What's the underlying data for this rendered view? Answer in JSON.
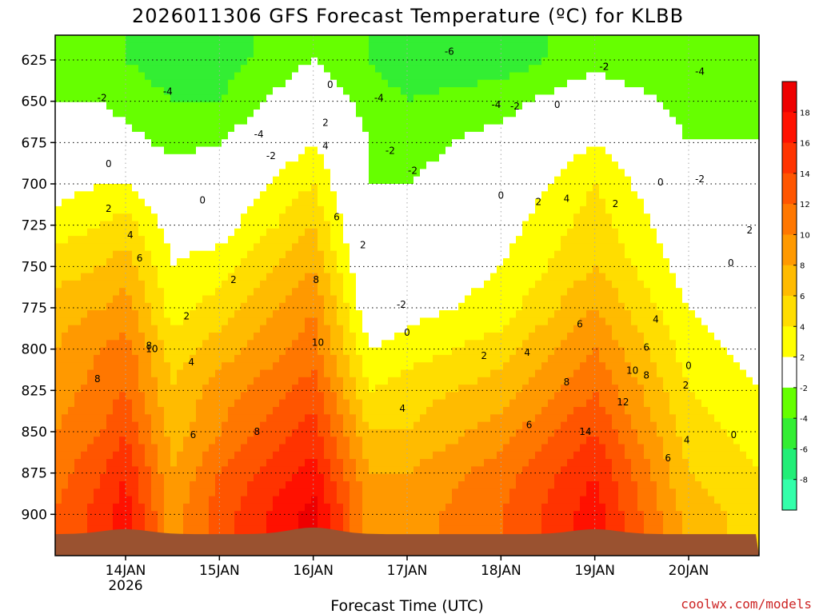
{
  "chart_data": {
    "type": "heatmap",
    "title": "2026011306 GFS Forecast Temperature (ºC) for KLBB",
    "xlabel": "Forecast Time (UTC)",
    "ylabel": "",
    "credit": "coolwx.com/models",
    "y_axis": {
      "range": [
        610,
        925
      ],
      "inverted": true,
      "ticks": [
        "625",
        "650",
        "675",
        "700",
        "725",
        "750",
        "775",
        "800",
        "825",
        "850",
        "875",
        "900"
      ]
    },
    "x_axis": {
      "range_days": [
        -0.75,
        6.75
      ],
      "ticks": [
        {
          "label": "14JAN",
          "day": 0
        },
        {
          "label": "15JAN",
          "day": 1
        },
        {
          "label": "16JAN",
          "day": 2
        },
        {
          "label": "17JAN",
          "day": 3
        },
        {
          "label": "18JAN",
          "day": 4
        },
        {
          "label": "19JAN",
          "day": 5
        },
        {
          "label": "20JAN",
          "day": 6
        }
      ],
      "year_label": "2026"
    },
    "grid": true,
    "colorbar": {
      "levels": [
        -10,
        -8,
        -6,
        -4,
        -2,
        2,
        4,
        6,
        8,
        10,
        12,
        14,
        16,
        18,
        20
      ],
      "tick_labels": [
        "-8",
        "-6",
        "-4",
        "-2",
        "2",
        "4",
        "6",
        "8",
        "10",
        "12",
        "14",
        "16",
        "18"
      ],
      "colors": [
        "#33ffaa",
        "#22ee77",
        "#33ee33",
        "#66ff00",
        "#ffffff",
        "#ffff00",
        "#ffdd00",
        "#ffbb00",
        "#ff9900",
        "#ff7700",
        "#ff5500",
        "#ff3300",
        "#ff1100",
        "#ee0000"
      ]
    },
    "surface_pressure_hpa": 910,
    "temperature_column": [
      {
        "day": -0.75,
        "temp_by_level": [
          -2,
          -2,
          0,
          1,
          3,
          5,
          7,
          8,
          9,
          10,
          11,
          12
        ]
      },
      {
        "day": -0.25,
        "temp_by_level": [
          -3,
          -2,
          0,
          2,
          4,
          6,
          8,
          10,
          11,
          12,
          14,
          15
        ]
      },
      {
        "day": 0.0,
        "temp_by_level": [
          -4,
          -3,
          -1,
          2,
          5,
          7,
          9,
          11,
          12,
          14,
          16,
          17
        ]
      },
      {
        "day": 0.5,
        "temp_by_level": [
          -5,
          -4,
          -3,
          0,
          1,
          2,
          3,
          5,
          6,
          7,
          8,
          9
        ]
      },
      {
        "day": 1.0,
        "temp_by_level": [
          -5,
          -4,
          -2,
          0,
          1,
          3,
          5,
          7,
          9,
          10,
          12,
          13
        ]
      },
      {
        "day": 2.0,
        "temp_by_level": [
          -2,
          0,
          2,
          4,
          6,
          8,
          10,
          11,
          13,
          15,
          17,
          19
        ]
      },
      {
        "day": 2.6,
        "temp_by_level": [
          -4,
          -3,
          -2,
          -2,
          -2,
          -1,
          0,
          2,
          4,
          6,
          8,
          9
        ]
      },
      {
        "day": 3.0,
        "temp_by_level": [
          -5,
          -4,
          -3,
          -2,
          -1,
          0,
          1,
          3,
          5,
          6,
          8,
          9
        ]
      },
      {
        "day": 4.0,
        "temp_by_level": [
          -5,
          -3,
          -1,
          0,
          1,
          2,
          3,
          5,
          7,
          9,
          11,
          12
        ]
      },
      {
        "day": 5.0,
        "temp_by_level": [
          -3,
          0,
          2,
          4,
          5,
          6,
          8,
          10,
          12,
          14,
          16,
          17
        ]
      },
      {
        "day": 6.0,
        "temp_by_level": [
          -4,
          -3,
          -2,
          -1,
          0,
          1,
          2,
          3,
          4,
          5,
          6,
          7
        ]
      },
      {
        "day": 6.75,
        "temp_by_level": [
          -3,
          -3,
          -2,
          -1,
          -1,
          0,
          0,
          1,
          2,
          3,
          4,
          5
        ]
      }
    ],
    "contour_labels": [
      {
        "text": "-6",
        "day": 3.45,
        "p": 620
      },
      {
        "text": "-4",
        "day": 0.45,
        "p": 644
      },
      {
        "text": "-4",
        "day": 1.42,
        "p": 670
      },
      {
        "text": "-4",
        "day": 2.7,
        "p": 648
      },
      {
        "text": "-4",
        "day": 6.12,
        "p": 632
      },
      {
        "text": "-2",
        "day": -0.25,
        "p": 648
      },
      {
        "text": "-2",
        "day": 1.55,
        "p": 683
      },
      {
        "text": "-2",
        "day": 2.82,
        "p": 680
      },
      {
        "text": "-2",
        "day": 3.06,
        "p": 692
      },
      {
        "text": "-2",
        "day": 4.15,
        "p": 653
      },
      {
        "text": "-2",
        "day": 5.1,
        "p": 629
      },
      {
        "text": "-2",
        "day": 6.12,
        "p": 697
      },
      {
        "text": "-2",
        "day": 2.94,
        "p": 773
      },
      {
        "text": "-4",
        "day": 3.95,
        "p": 652
      },
      {
        "text": "-2",
        "day": 5.1,
        "p": 629
      },
      {
        "text": "0",
        "day": -0.18,
        "p": 688
      },
      {
        "text": "0",
        "day": 0.82,
        "p": 710
      },
      {
        "text": "0",
        "day": 2.18,
        "p": 640
      },
      {
        "text": "0",
        "day": 4.6,
        "p": 652
      },
      {
        "text": "0",
        "day": 4.0,
        "p": 707
      },
      {
        "text": "0",
        "day": 3.0,
        "p": 790
      },
      {
        "text": "0",
        "day": 5.7,
        "p": 699
      },
      {
        "text": "0",
        "day": 6.45,
        "p": 748
      },
      {
        "text": "0",
        "day": 6.0,
        "p": 810
      },
      {
        "text": "0",
        "day": 6.48,
        "p": 852
      },
      {
        "text": "2",
        "day": -0.18,
        "p": 715
      },
      {
        "text": "2",
        "day": 0.65,
        "p": 780
      },
      {
        "text": "2",
        "day": 1.15,
        "p": 758
      },
      {
        "text": "2",
        "day": 2.13,
        "p": 663
      },
      {
        "text": "2",
        "day": 2.53,
        "p": 737
      },
      {
        "text": "2",
        "day": 4.4,
        "p": 711
      },
      {
        "text": "2",
        "day": 5.22,
        "p": 712
      },
      {
        "text": "2",
        "day": 3.82,
        "p": 804
      },
      {
        "text": "2",
        "day": 5.97,
        "p": 822
      },
      {
        "text": "2",
        "day": 6.65,
        "p": 728
      },
      {
        "text": "4",
        "day": 0.05,
        "p": 731
      },
      {
        "text": "4",
        "day": 0.7,
        "p": 808
      },
      {
        "text": "4",
        "day": 2.13,
        "p": 677
      },
      {
        "text": "4",
        "day": 4.28,
        "p": 802
      },
      {
        "text": "4",
        "day": 4.7,
        "p": 709
      },
      {
        "text": "4",
        "day": 5.65,
        "p": 782
      },
      {
        "text": "4",
        "day": 2.95,
        "p": 836
      },
      {
        "text": "4",
        "day": 5.98,
        "p": 855
      },
      {
        "text": "6",
        "day": 0.15,
        "p": 745
      },
      {
        "text": "6",
        "day": 0.72,
        "p": 852
      },
      {
        "text": "6",
        "day": 2.25,
        "p": 720
      },
      {
        "text": "6",
        "day": 4.3,
        "p": 846
      },
      {
        "text": "6",
        "day": 4.84,
        "p": 785
      },
      {
        "text": "6",
        "day": 5.55,
        "p": 799
      },
      {
        "text": "6",
        "day": 5.78,
        "p": 866
      },
      {
        "text": "8",
        "day": 0.25,
        "p": 798
      },
      {
        "text": "8",
        "day": -0.3,
        "p": 818
      },
      {
        "text": "8",
        "day": 1.4,
        "p": 850
      },
      {
        "text": "8",
        "day": 2.03,
        "p": 758
      },
      {
        "text": "8",
        "day": 4.7,
        "p": 820
      },
      {
        "text": "8",
        "day": 5.55,
        "p": 816
      },
      {
        "text": "10",
        "day": 0.28,
        "p": 800
      },
      {
        "text": "10",
        "day": 2.05,
        "p": 796
      },
      {
        "text": "10",
        "day": 5.4,
        "p": 813
      },
      {
        "text": "12",
        "day": 5.3,
        "p": 832
      },
      {
        "text": "14",
        "day": 4.9,
        "p": 850
      }
    ]
  }
}
